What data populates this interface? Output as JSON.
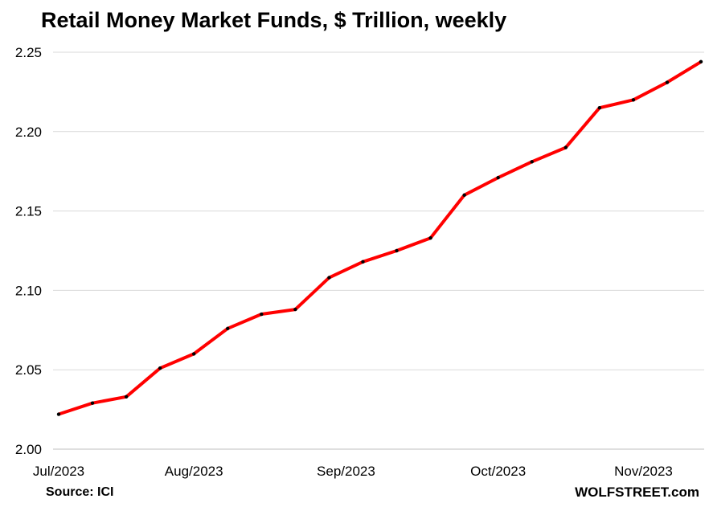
{
  "chart_data": {
    "type": "line",
    "title": "Retail Money Market Funds, $ Trillion, weekly",
    "xlabel": "",
    "ylabel": "",
    "ylim": [
      2.0,
      2.25
    ],
    "yticks": [
      "2.00",
      "2.05",
      "2.10",
      "2.15",
      "2.20",
      "2.25"
    ],
    "x_tick_labels": [
      {
        "label": "Jul/2023",
        "week_index": 0
      },
      {
        "label": "Aug/2023",
        "week_index": 4
      },
      {
        "label": "Sep/2023",
        "week_index": 8.5
      },
      {
        "label": "Oct/2023",
        "week_index": 13
      },
      {
        "label": "Nov/2023",
        "week_index": 17.3
      }
    ],
    "grid": "horizontal",
    "series": [
      {
        "color": "#ff0000",
        "marker_color": "#000000",
        "values": [
          2.022,
          2.029,
          2.033,
          2.051,
          2.06,
          2.076,
          2.085,
          2.088,
          2.108,
          2.118,
          2.125,
          2.133,
          2.16,
          2.171,
          2.181,
          2.19,
          2.215,
          2.22,
          2.231,
          2.244
        ]
      }
    ]
  },
  "footer": {
    "source": "Source: ICI",
    "brand": "WOLFSTREET.com"
  }
}
